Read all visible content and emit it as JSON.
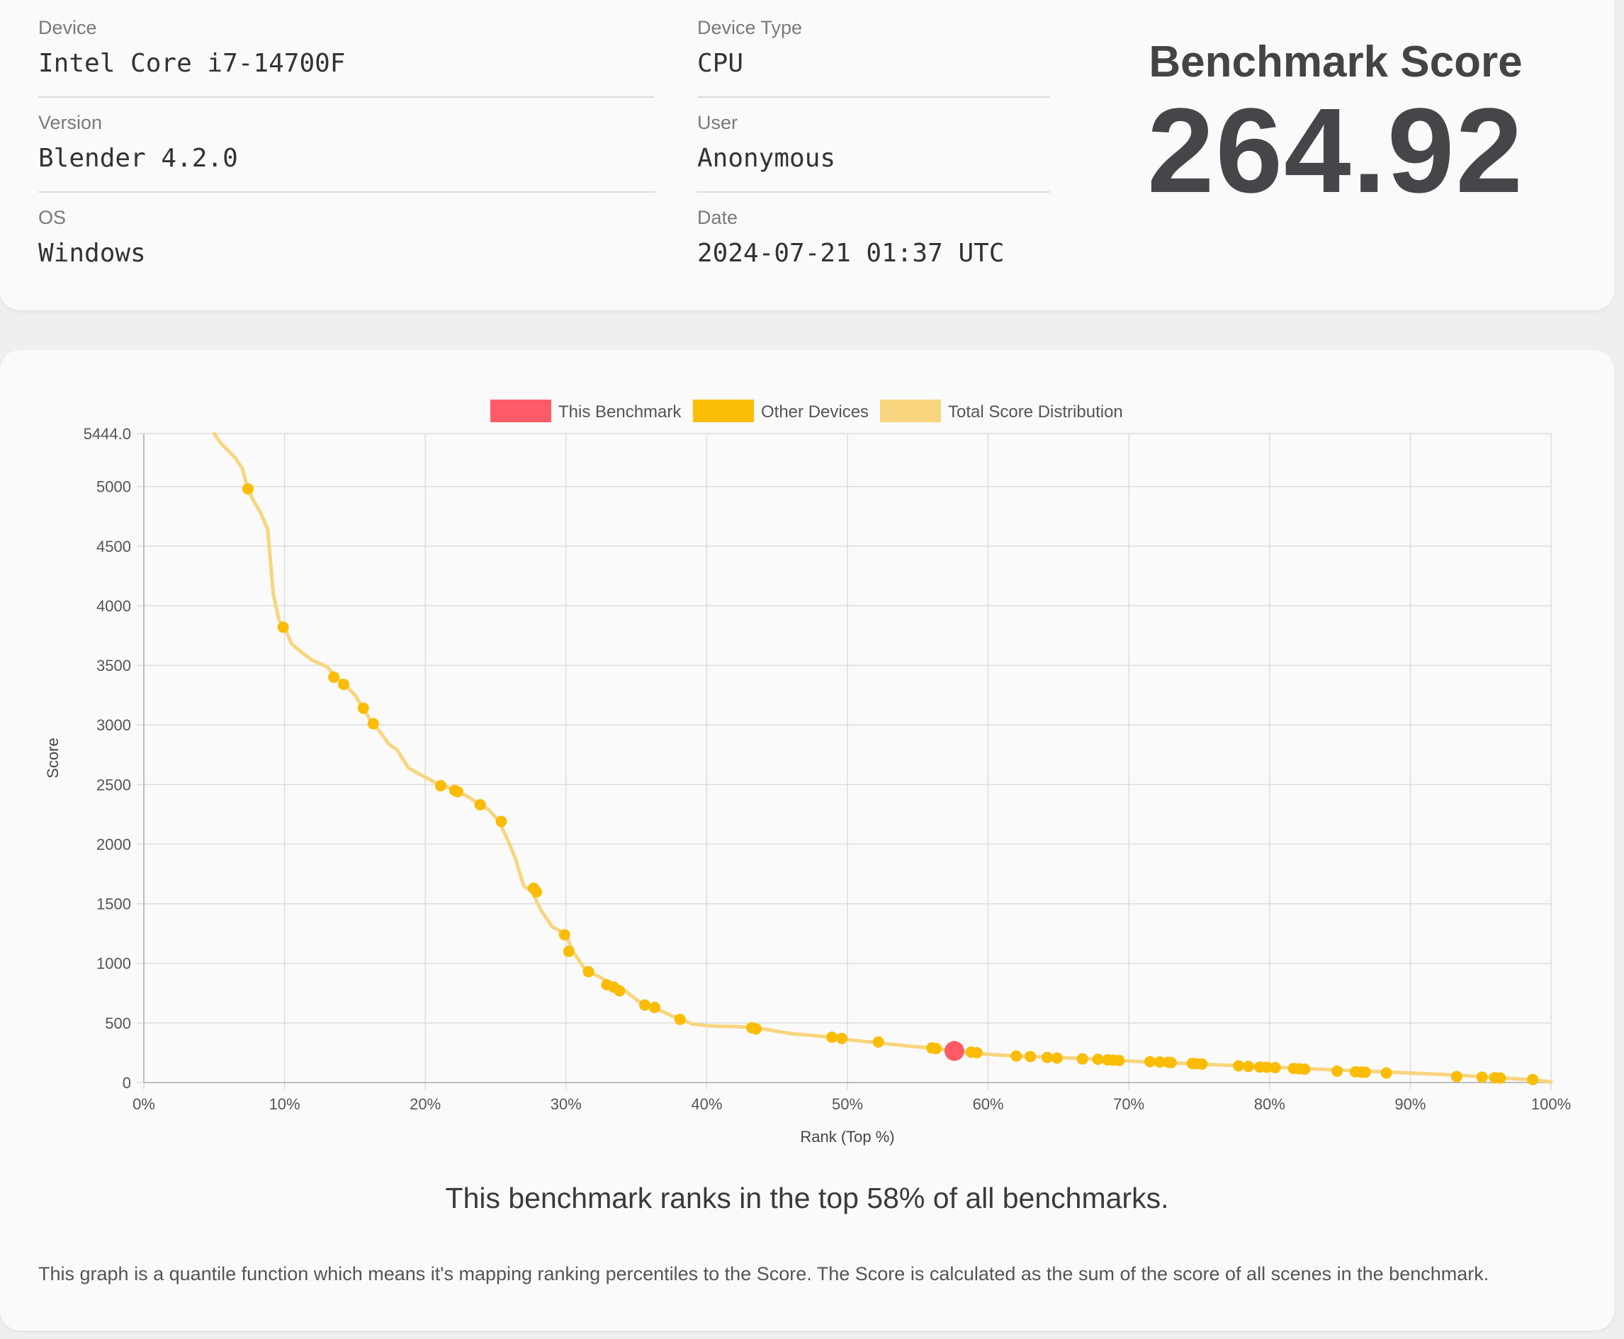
{
  "info": {
    "device": {
      "label": "Device",
      "value": "Intel Core i7-14700F"
    },
    "device_type": {
      "label": "Device Type",
      "value": "CPU"
    },
    "version": {
      "label": "Version",
      "value": "Blender 4.2.0"
    },
    "user": {
      "label": "User",
      "value": "Anonymous"
    },
    "os": {
      "label": "OS",
      "value": "Windows"
    },
    "date": {
      "label": "Date",
      "value": "2024-07-21 01:37 UTC"
    }
  },
  "score": {
    "title": "Benchmark Score",
    "value": "264.92"
  },
  "rank_text": "This benchmark ranks in the top 58% of all benchmarks.",
  "description": "This graph is a quantile function which means it's mapping ranking percentiles to the Score. The Score is calculated as the sum of the score of all scenes in the benchmark.",
  "colors": {
    "this_benchmark": "#ff5a67",
    "other_devices": "#fbbc05",
    "distribution": "#f8d57e"
  },
  "chart_data": {
    "type": "line",
    "xlabel": "Rank (Top %)",
    "ylabel": "Score",
    "xlim": [
      0,
      100
    ],
    "ylim": [
      0,
      5444.0
    ],
    "x_ticks": [
      0,
      10,
      20,
      30,
      40,
      50,
      60,
      70,
      80,
      90,
      100
    ],
    "x_tick_labels": [
      "0%",
      "10%",
      "20%",
      "30%",
      "40%",
      "50%",
      "60%",
      "70%",
      "80%",
      "90%",
      "100%"
    ],
    "y_ticks": [
      0,
      500,
      1000,
      1500,
      2000,
      2500,
      3000,
      3500,
      4000,
      4500,
      5000,
      5444.0
    ],
    "y_tick_labels": [
      "0",
      "500",
      "1000",
      "1500",
      "2000",
      "2500",
      "3000",
      "3500",
      "4000",
      "4500",
      "5000",
      "5444.0"
    ],
    "grid": true,
    "legend_position": "top-center",
    "legend": [
      "This Benchmark",
      "Other Devices",
      "Total Score Distribution"
    ],
    "series": [
      {
        "name": "Total Score Distribution",
        "x": [
          5.0,
          5.5,
          6.0,
          6.5,
          7.0,
          7.4,
          7.8,
          8.3,
          8.8,
          9.2,
          9.6,
          10.0,
          10.5,
          11.2,
          12.0,
          13.0,
          13.6,
          14.2,
          15.0,
          15.6,
          16.2,
          16.8,
          17.4,
          18.0,
          18.8,
          20.0,
          21.0,
          22.0,
          23.0,
          23.8,
          24.5,
          25.2,
          25.8,
          26.4,
          27.0,
          27.6,
          28.2,
          29.0,
          30.0,
          30.5,
          31.4,
          32.5,
          33.3,
          34.2,
          35.5,
          36.6,
          37.5,
          38.2,
          39.0,
          40.0,
          41.0,
          42.0,
          43.5,
          44.5,
          46.0,
          48.0,
          49.0,
          50.0,
          52.0,
          54.0,
          56.0,
          57.6,
          59.0,
          62.0,
          65.0,
          68.0,
          70.0,
          73.0,
          76.0,
          80.0,
          84.0,
          88.0,
          92.0,
          95.0,
          97.0,
          99.0,
          100.0
        ],
        "y": [
          5444,
          5360,
          5300,
          5240,
          5150,
          4980,
          4880,
          4780,
          4640,
          4100,
          3880,
          3820,
          3680,
          3610,
          3540,
          3490,
          3410,
          3350,
          3250,
          3140,
          3020,
          2940,
          2840,
          2790,
          2640,
          2560,
          2500,
          2460,
          2400,
          2340,
          2290,
          2200,
          2050,
          1880,
          1650,
          1600,
          1450,
          1310,
          1240,
          1100,
          940,
          880,
          820,
          770,
          650,
          610,
          560,
          530,
          490,
          478,
          472,
          470,
          460,
          440,
          410,
          390,
          375,
          360,
          335,
          310,
          290,
          265,
          245,
          222,
          210,
          195,
          180,
          165,
          150,
          130,
          110,
          90,
          70,
          50,
          35,
          20,
          5
        ]
      },
      {
        "name": "Other Devices",
        "x": [
          7.4,
          9.9,
          13.5,
          14.2,
          15.6,
          16.3,
          21.1,
          22.1,
          22.3,
          23.9,
          25.4,
          27.7,
          27.9,
          29.9,
          30.2,
          31.6,
          32.9,
          33.4,
          33.8,
          35.6,
          36.3,
          38.1,
          43.2,
          43.5,
          48.9,
          49.6,
          52.2,
          56.0,
          56.3,
          58.8,
          59.2,
          62.0,
          63.0,
          64.2,
          64.9,
          66.7,
          67.8,
          68.5,
          68.9,
          69.3,
          71.5,
          72.2,
          72.8,
          73.0,
          74.5,
          74.8,
          75.2,
          77.8,
          78.5,
          79.3,
          79.8,
          80.4,
          81.7,
          82.1,
          82.5,
          84.8,
          86.1,
          86.5,
          86.8,
          88.3,
          93.3,
          95.1,
          96.0,
          96.4,
          98.7
        ],
        "y": [
          4980,
          3820,
          3400,
          3340,
          3140,
          3010,
          2490,
          2450,
          2440,
          2330,
          2190,
          1630,
          1600,
          1240,
          1100,
          930,
          820,
          800,
          770,
          650,
          630,
          530,
          460,
          450,
          380,
          370,
          340,
          290,
          285,
          255,
          250,
          222,
          218,
          210,
          205,
          198,
          195,
          190,
          188,
          185,
          175,
          172,
          170,
          168,
          160,
          158,
          155,
          140,
          135,
          130,
          128,
          125,
          118,
          115,
          112,
          95,
          90,
          88,
          86,
          80,
          50,
          45,
          40,
          38,
          25
        ]
      },
      {
        "name": "This Benchmark",
        "x": [
          57.6
        ],
        "y": [
          264.92
        ]
      }
    ]
  }
}
